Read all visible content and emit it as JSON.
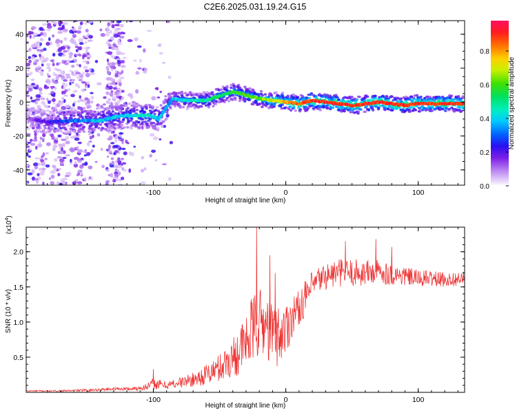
{
  "title": "C2E6.2025.031.19.24.G15",
  "chart_data": [
    {
      "type": "heatmap",
      "xlabel": "Height of straight line (km)",
      "ylabel": "Frequency (Hz)",
      "xlim": [
        -196,
        135
      ],
      "ylim": [
        -49,
        48
      ],
      "xticks": [
        -100,
        0,
        100
      ],
      "yticks": [
        -40,
        -20,
        0,
        20,
        40
      ],
      "colorbar": {
        "label": "Normalized spectral amplitude",
        "range": [
          0.0,
          0.98
        ],
        "ticks": [
          "0.0",
          "0.2",
          "0.4",
          "0.6",
          "0.8"
        ]
      },
      "ridge": {
        "x": [
          -196,
          -180,
          -165,
          -150,
          -140,
          -125,
          -112,
          -102,
          -96,
          -90,
          -85,
          -75,
          -60,
          -45,
          -38,
          -30,
          -20,
          -10,
          0,
          10,
          20,
          30,
          40,
          50,
          60,
          70,
          80,
          90,
          100,
          110,
          120,
          135
        ],
        "freq": [
          -9,
          -12,
          -11,
          -11,
          -11,
          -8,
          -8,
          -8,
          -10,
          -3,
          2,
          1,
          1,
          5,
          6,
          4,
          2,
          1,
          0,
          -1,
          1,
          0,
          -1,
          -2,
          -1,
          0,
          -1,
          -2,
          -1,
          -1,
          -1,
          -1
        ],
        "amplitude": [
          0.1,
          0.2,
          0.3,
          0.35,
          0.4,
          0.4,
          0.45,
          0.45,
          0.4,
          0.35,
          0.4,
          0.45,
          0.5,
          0.55,
          0.6,
          0.6,
          0.65,
          0.7,
          0.8,
          0.85,
          0.9,
          0.92,
          0.92,
          0.92,
          0.9,
          0.92,
          0.92,
          0.9,
          0.9,
          0.9,
          0.9,
          0.9
        ]
      }
    },
    {
      "type": "line",
      "xlabel": "Height of straight line (km)",
      "ylabel": "SNR (10 * v/v)",
      "y_multiplier": "x10^4",
      "xlim": [
        -196,
        135
      ],
      "ylim": [
        0,
        2.35
      ],
      "xticks": [
        -100,
        0,
        100
      ],
      "yticks": [
        0.5,
        1.0,
        1.5,
        2.0
      ],
      "ytick_labels": [
        "0.5",
        "1.0",
        "1.5",
        "2.0"
      ],
      "color": "#ee3333",
      "series": [
        {
          "name": "SNR",
          "x": [
            -196,
            -170,
            -150,
            -130,
            -115,
            -105,
            -100,
            -90,
            -80,
            -70,
            -60,
            -50,
            -40,
            -30,
            -25,
            -20,
            -15,
            -10,
            -5,
            0,
            5,
            10,
            15,
            20,
            25,
            30,
            40,
            50,
            60,
            70,
            80,
            90,
            100,
            110,
            120,
            135
          ],
          "mean": [
            0.02,
            0.02,
            0.03,
            0.05,
            0.05,
            0.08,
            0.12,
            0.1,
            0.14,
            0.18,
            0.25,
            0.35,
            0.5,
            0.7,
            0.9,
            1.0,
            0.95,
            0.85,
            0.8,
            0.9,
            1.1,
            1.2,
            1.35,
            1.5,
            1.6,
            1.65,
            1.7,
            1.7,
            1.7,
            1.72,
            1.68,
            1.65,
            1.62,
            1.62,
            1.6,
            1.62
          ],
          "spread": [
            0.01,
            0.01,
            0.02,
            0.02,
            0.03,
            0.05,
            0.08,
            0.06,
            0.08,
            0.1,
            0.15,
            0.2,
            0.3,
            0.4,
            0.5,
            0.5,
            0.5,
            0.45,
            0.45,
            0.4,
            0.3,
            0.25,
            0.25,
            0.22,
            0.2,
            0.2,
            0.2,
            0.2,
            0.2,
            0.18,
            0.16,
            0.14,
            0.12,
            0.12,
            0.1,
            0.1
          ],
          "peaks": [
            {
              "x": -100,
              "y": 0.33
            },
            {
              "x": -22,
              "y": 2.35
            },
            {
              "x": -12,
              "y": 1.95
            },
            {
              "x": -8,
              "y": 1.7
            },
            {
              "x": 45,
              "y": 2.15
            },
            {
              "x": 68,
              "y": 2.18
            },
            {
              "x": 80,
              "y": 2.07
            }
          ]
        }
      ]
    }
  ]
}
